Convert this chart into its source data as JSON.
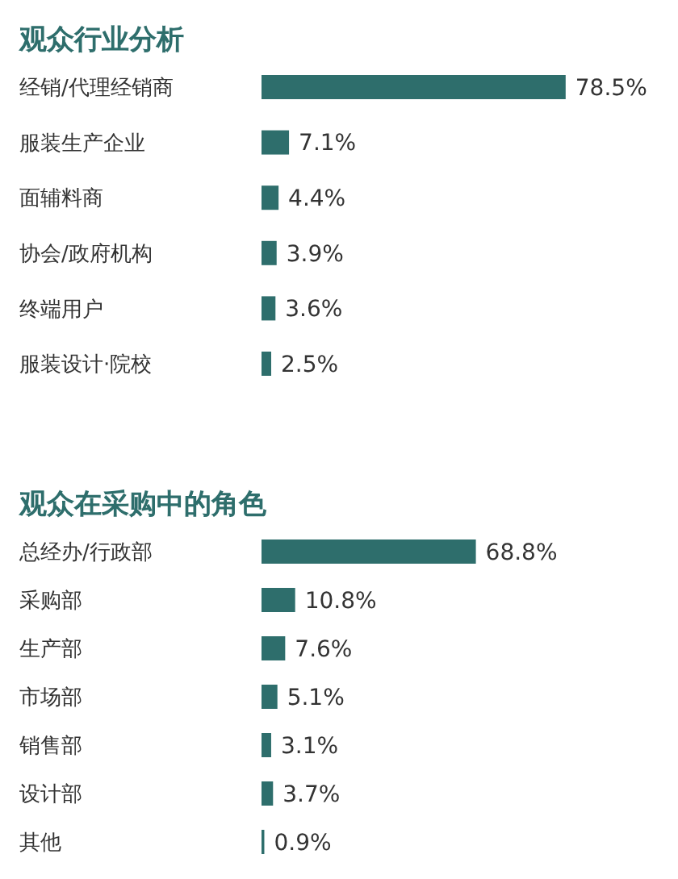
{
  "chart_data": [
    {
      "type": "bar",
      "orientation": "horizontal",
      "title": "观众行业分析",
      "categories": [
        "经销/代理经销商",
        "服装生产企业",
        "面辅料商",
        "协会/政府机构",
        "终端用户",
        "服装设计·院校"
      ],
      "values": [
        78.5,
        7.1,
        4.4,
        3.9,
        3.6,
        2.5
      ],
      "color": "#2e6e6c",
      "value_labels": [
        "78.5%",
        "7.1%",
        "4.4%",
        "3.9%",
        "3.6%",
        "2.5%"
      ]
    },
    {
      "type": "bar",
      "orientation": "horizontal",
      "title": "观众在采购中的角色",
      "categories": [
        "总经办/行政部",
        "采购部",
        "生产部",
        "市场部",
        "销售部",
        "设计部",
        "其他"
      ],
      "values": [
        68.8,
        10.8,
        7.6,
        5.1,
        3.1,
        3.7,
        0.9
      ],
      "color": "#2e6e6c",
      "value_labels": [
        "68.8%",
        "10.8%",
        "7.6%",
        "5.1%",
        "3.1%",
        "3.7%",
        "0.9%"
      ]
    }
  ]
}
